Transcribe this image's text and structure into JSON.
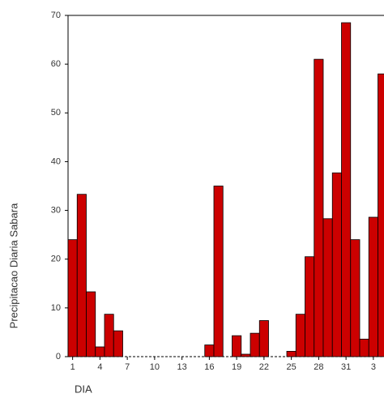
{
  "chart_data": {
    "type": "bar",
    "x_label": "DIA",
    "y_label": "Precipitacao Diaria Sabara",
    "categories": [
      "1",
      null,
      null,
      "4",
      null,
      null,
      "7",
      null,
      null,
      "10",
      null,
      null,
      "13",
      null,
      null,
      "16",
      null,
      null,
      "19",
      null,
      null,
      "22",
      null,
      null,
      "25",
      null,
      null,
      "28",
      null,
      null,
      "31",
      null,
      null,
      "3",
      null
    ],
    "values": [
      24,
      33.3,
      13.3,
      2,
      8.7,
      5.3,
      0,
      0,
      0,
      0,
      0,
      0,
      0,
      0,
      0,
      2.4,
      35,
      0,
      4.3,
      0.5,
      4.8,
      7.4,
      0,
      0,
      1.1,
      8.7,
      20.5,
      61,
      28.3,
      37.7,
      68.5,
      24,
      3.6,
      28.6,
      58
    ],
    "color": "#cc0000",
    "ylim": [
      0,
      70
    ],
    "yticks": [
      0,
      10,
      20,
      30,
      40,
      50,
      60,
      70
    ]
  }
}
